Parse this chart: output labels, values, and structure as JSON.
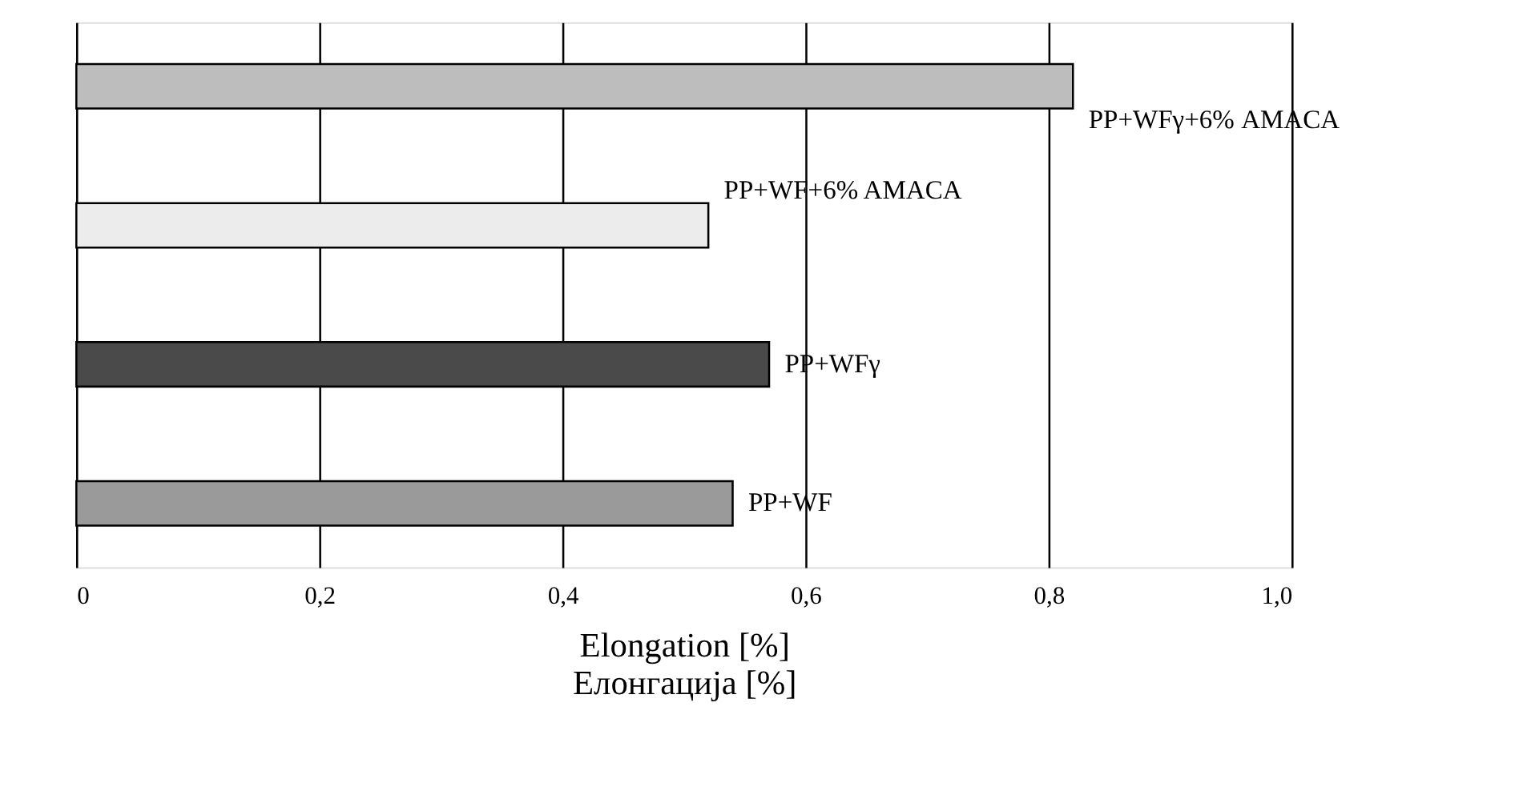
{
  "chart_data": {
    "type": "bar",
    "orientation": "horizontal",
    "categories": [
      "PP+WFγ+6% AMACA",
      "PP+WF+6% AMACA",
      "PP+WFγ",
      "PP+WF"
    ],
    "values": [
      0.82,
      0.52,
      0.57,
      0.54
    ],
    "colors": [
      "#bdbdbd",
      "#ececec",
      "#4a4a4a",
      "#9a9a9a"
    ],
    "xlim": [
      0,
      1.0
    ],
    "xticks": [
      0,
      {
        "value": 0.2,
        "label": "0,2"
      },
      {
        "value": 0.4,
        "label": "0,4"
      },
      {
        "value": 0.6,
        "label": "0,6"
      },
      {
        "value": 0.8,
        "label": "0,8"
      },
      {
        "value": 1.0,
        "label": "1,0"
      }
    ],
    "xlabel": "Elongation [%]\nЕлонгација [%]",
    "grid": "x",
    "tick_labels": "x"
  }
}
